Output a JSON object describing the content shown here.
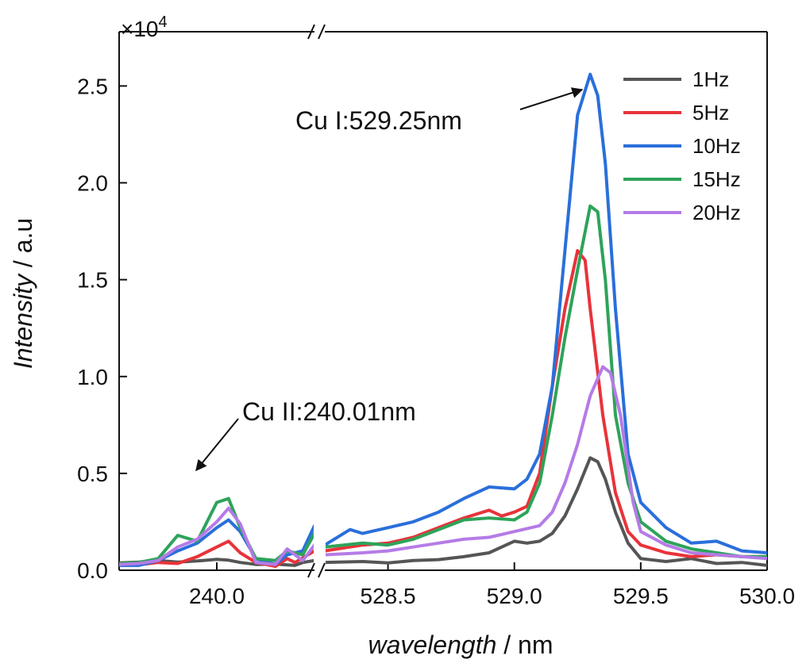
{
  "chart_data": {
    "type": "line",
    "multiplier": "×10",
    "multiplier_exp": "4",
    "xlabel_italic": "wavelength",
    "xlabel_unit": " / nm",
    "ylabel_italic": "Intensity",
    "ylabel_unit": " / a.u",
    "ylim": [
      0,
      27800
    ],
    "yticks": [
      {
        "value": 0,
        "label": "0.0"
      },
      {
        "value": 5000,
        "label": "0.5"
      },
      {
        "value": 10000,
        "label": "1.0"
      },
      {
        "value": 15000,
        "label": "1.5"
      },
      {
        "value": 20000,
        "label": "2.0"
      },
      {
        "value": 25000,
        "label": "2.5"
      }
    ],
    "segments": [
      {
        "xlim": [
          239.75,
          240.25
        ],
        "xticks": [
          {
            "value": 240.0,
            "label": "240.0"
          }
        ]
      },
      {
        "xlim": [
          528.25,
          530.0
        ],
        "xticks": [
          {
            "value": 528.5,
            "label": "528.5"
          },
          {
            "value": 529.0,
            "label": "529.0"
          },
          {
            "value": 529.5,
            "label": "529.5"
          },
          {
            "value": 530.0,
            "label": "530.0"
          }
        ]
      }
    ],
    "legend_position": "top-right",
    "series": [
      {
        "name": "1Hz",
        "color": "#555555",
        "seg1": [
          [
            239.75,
            380
          ],
          [
            239.8,
            420
          ],
          [
            239.85,
            500
          ],
          [
            239.9,
            420
          ],
          [
            239.95,
            480
          ],
          [
            240.0,
            560
          ],
          [
            240.03,
            520
          ],
          [
            240.06,
            400
          ],
          [
            240.1,
            300
          ],
          [
            240.15,
            320
          ],
          [
            240.2,
            250
          ],
          [
            240.22,
            400
          ],
          [
            240.25,
            500
          ]
        ],
        "seg2": [
          [
            528.25,
            400
          ],
          [
            528.4,
            450
          ],
          [
            528.5,
            380
          ],
          [
            528.6,
            500
          ],
          [
            528.7,
            550
          ],
          [
            528.8,
            700
          ],
          [
            528.9,
            900
          ],
          [
            528.95,
            1200
          ],
          [
            529.0,
            1500
          ],
          [
            529.05,
            1400
          ],
          [
            529.1,
            1500
          ],
          [
            529.15,
            1900
          ],
          [
            529.2,
            2800
          ],
          [
            529.25,
            4200
          ],
          [
            529.3,
            5800
          ],
          [
            529.33,
            5600
          ],
          [
            529.36,
            4700
          ],
          [
            529.4,
            3000
          ],
          [
            529.45,
            1400
          ],
          [
            529.5,
            600
          ],
          [
            529.6,
            450
          ],
          [
            529.7,
            600
          ],
          [
            529.8,
            350
          ],
          [
            529.9,
            400
          ],
          [
            530.0,
            250
          ]
        ]
      },
      {
        "name": "5Hz",
        "color": "#e8333a",
        "seg1": [
          [
            239.75,
            250
          ],
          [
            239.8,
            280
          ],
          [
            239.85,
            400
          ],
          [
            239.9,
            350
          ],
          [
            239.95,
            700
          ],
          [
            240.0,
            1200
          ],
          [
            240.03,
            1500
          ],
          [
            240.06,
            900
          ],
          [
            240.1,
            400
          ],
          [
            240.15,
            200
          ],
          [
            240.18,
            600
          ],
          [
            240.2,
            400
          ],
          [
            240.25,
            1000
          ]
        ],
        "seg2": [
          [
            528.25,
            1000
          ],
          [
            528.4,
            1300
          ],
          [
            528.5,
            1400
          ],
          [
            528.6,
            1700
          ],
          [
            528.7,
            2200
          ],
          [
            528.8,
            2700
          ],
          [
            528.9,
            3100
          ],
          [
            528.95,
            2800
          ],
          [
            529.0,
            3000
          ],
          [
            529.05,
            3300
          ],
          [
            529.1,
            5000
          ],
          [
            529.15,
            9500
          ],
          [
            529.2,
            13500
          ],
          [
            529.25,
            16500
          ],
          [
            529.28,
            16000
          ],
          [
            529.3,
            13500
          ],
          [
            529.35,
            8000
          ],
          [
            529.4,
            4000
          ],
          [
            529.45,
            2000
          ],
          [
            529.5,
            1300
          ],
          [
            529.6,
            900
          ],
          [
            529.7,
            700
          ],
          [
            529.8,
            800
          ],
          [
            529.9,
            700
          ],
          [
            530.0,
            700
          ]
        ]
      },
      {
        "name": "10Hz",
        "color": "#2a6fdb",
        "seg1": [
          [
            239.75,
            250
          ],
          [
            239.8,
            250
          ],
          [
            239.85,
            500
          ],
          [
            239.9,
            1000
          ],
          [
            239.95,
            1400
          ],
          [
            240.0,
            2200
          ],
          [
            240.03,
            2600
          ],
          [
            240.06,
            2000
          ],
          [
            240.1,
            600
          ],
          [
            240.15,
            300
          ],
          [
            240.18,
            800
          ],
          [
            240.22,
            1000
          ],
          [
            240.25,
            2300
          ]
        ],
        "seg2": [
          [
            528.25,
            1300
          ],
          [
            528.35,
            2100
          ],
          [
            528.4,
            1900
          ],
          [
            528.5,
            2200
          ],
          [
            528.6,
            2500
          ],
          [
            528.7,
            3000
          ],
          [
            528.8,
            3700
          ],
          [
            528.9,
            4300
          ],
          [
            529.0,
            4200
          ],
          [
            529.05,
            4700
          ],
          [
            529.1,
            6000
          ],
          [
            529.15,
            9500
          ],
          [
            529.2,
            16500
          ],
          [
            529.25,
            23500
          ],
          [
            529.3,
            25600
          ],
          [
            529.33,
            24500
          ],
          [
            529.36,
            21000
          ],
          [
            529.4,
            13500
          ],
          [
            529.45,
            6000
          ],
          [
            529.5,
            3500
          ],
          [
            529.6,
            2200
          ],
          [
            529.7,
            1400
          ],
          [
            529.8,
            1500
          ],
          [
            529.9,
            1000
          ],
          [
            530.0,
            900
          ]
        ]
      },
      {
        "name": "15Hz",
        "color": "#2ea35a",
        "seg1": [
          [
            239.75,
            350
          ],
          [
            239.8,
            400
          ],
          [
            239.85,
            600
          ],
          [
            239.9,
            1800
          ],
          [
            239.95,
            1500
          ],
          [
            240.0,
            3500
          ],
          [
            240.03,
            3700
          ],
          [
            240.06,
            2200
          ],
          [
            240.1,
            600
          ],
          [
            240.15,
            500
          ],
          [
            240.18,
            1000
          ],
          [
            240.22,
            800
          ],
          [
            240.25,
            1900
          ]
        ],
        "seg2": [
          [
            528.25,
            1200
          ],
          [
            528.4,
            1400
          ],
          [
            528.5,
            1300
          ],
          [
            528.6,
            1600
          ],
          [
            528.7,
            2100
          ],
          [
            528.8,
            2600
          ],
          [
            528.9,
            2700
          ],
          [
            529.0,
            2600
          ],
          [
            529.05,
            3000
          ],
          [
            529.1,
            4500
          ],
          [
            529.15,
            8000
          ],
          [
            529.2,
            12000
          ],
          [
            529.25,
            15500
          ],
          [
            529.3,
            18800
          ],
          [
            529.33,
            18500
          ],
          [
            529.36,
            15000
          ],
          [
            529.4,
            8000
          ],
          [
            529.45,
            4500
          ],
          [
            529.5,
            2500
          ],
          [
            529.6,
            1500
          ],
          [
            529.7,
            1100
          ],
          [
            529.8,
            900
          ],
          [
            529.9,
            700
          ],
          [
            530.0,
            700
          ]
        ]
      },
      {
        "name": "20Hz",
        "color": "#b57be6",
        "seg1": [
          [
            239.75,
            300
          ],
          [
            239.8,
            350
          ],
          [
            239.85,
            500
          ],
          [
            239.9,
            1200
          ],
          [
            239.95,
            1600
          ],
          [
            240.0,
            2500
          ],
          [
            240.03,
            3200
          ],
          [
            240.06,
            2400
          ],
          [
            240.1,
            400
          ],
          [
            240.15,
            300
          ],
          [
            240.18,
            1100
          ],
          [
            240.22,
            500
          ],
          [
            240.25,
            1300
          ]
        ],
        "seg2": [
          [
            528.25,
            800
          ],
          [
            528.4,
            900
          ],
          [
            528.5,
            1000
          ],
          [
            528.6,
            1200
          ],
          [
            528.7,
            1400
          ],
          [
            528.8,
            1600
          ],
          [
            528.9,
            1700
          ],
          [
            529.0,
            2000
          ],
          [
            529.1,
            2300
          ],
          [
            529.15,
            3000
          ],
          [
            529.2,
            4500
          ],
          [
            529.25,
            6500
          ],
          [
            529.3,
            9000
          ],
          [
            529.35,
            10500
          ],
          [
            529.38,
            10200
          ],
          [
            529.42,
            8000
          ],
          [
            529.47,
            3500
          ],
          [
            529.5,
            2000
          ],
          [
            529.6,
            1300
          ],
          [
            529.7,
            900
          ],
          [
            529.8,
            800
          ],
          [
            529.9,
            700
          ],
          [
            530.0,
            600
          ]
        ]
      }
    ],
    "annotations": [
      {
        "text": "Cu I:529.25nm"
      },
      {
        "text": "Cu II:240.01nm"
      }
    ]
  }
}
